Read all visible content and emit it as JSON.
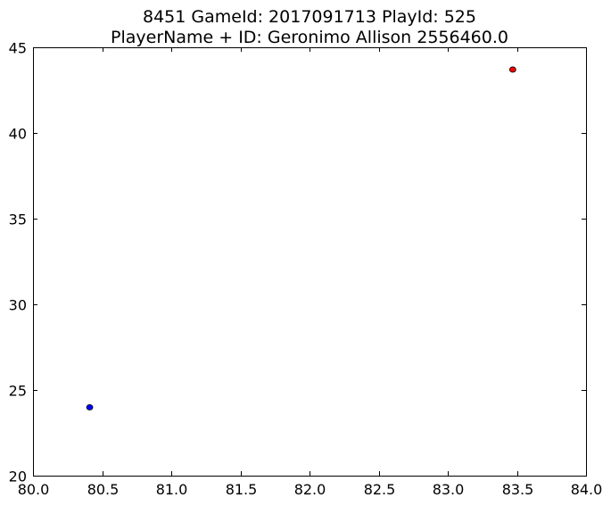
{
  "chart_data": {
    "type": "scatter",
    "title": "8451 GameId: 2017091713 PlayId: 525",
    "subtitle": "PlayerName + ID: Geronimo Allison 2556460.0",
    "xlabel": "",
    "ylabel": "",
    "xlim": [
      80.0,
      84.0
    ],
    "ylim": [
      20,
      45
    ],
    "x_ticks": [
      "80.0",
      "80.5",
      "81.0",
      "81.5",
      "82.0",
      "82.5",
      "83.0",
      "83.5",
      "84.0"
    ],
    "y_ticks": [
      "20",
      "25",
      "30",
      "35",
      "40",
      "45"
    ],
    "grid": false,
    "legend": "none",
    "series": [
      {
        "color": "#ff0000",
        "points": [
          {
            "x": 83.47,
            "y": 43.7
          }
        ]
      },
      {
        "color": "#0000ff",
        "points": [
          {
            "x": 80.41,
            "y": 23.99
          }
        ]
      }
    ]
  }
}
